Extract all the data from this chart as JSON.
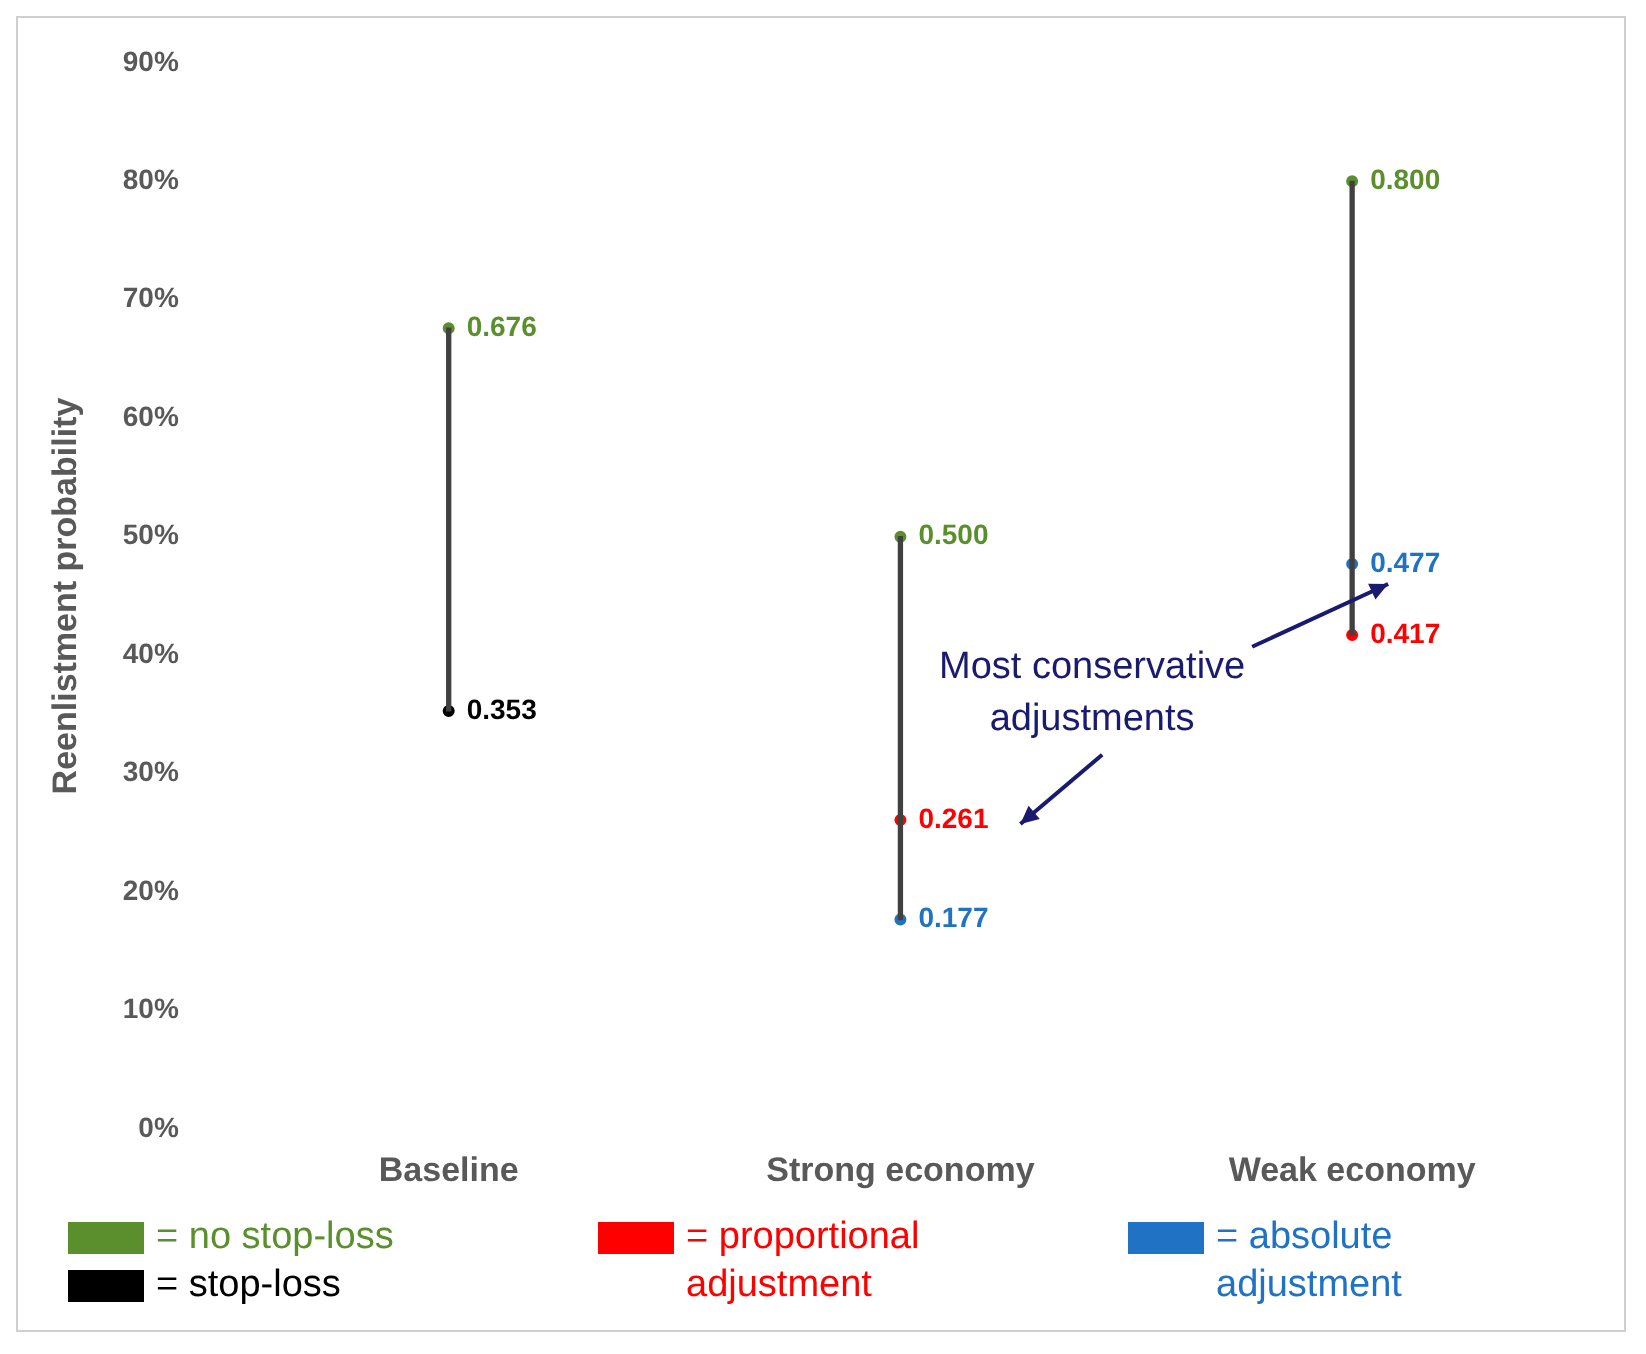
{
  "chart_data": {
    "type": "bar",
    "ylabel": "Reenlistment probability",
    "categories": [
      "Baseline",
      "Strong economy",
      "Weak economy"
    ],
    "series": [
      {
        "color": "#404040",
        "base": [
          0.353,
          0.177,
          0.417
        ],
        "values": [
          0.323,
          0.323,
          0.383
        ]
      },
      {
        "type": "scatter",
        "name": "= no stop-loss",
        "color": "#5b8f2e",
        "values": [
          0.676,
          0.5,
          0.8
        ],
        "value_labels": [
          "0.676",
          "0.500",
          "0.800"
        ]
      },
      {
        "type": "scatter",
        "name": "= stop-loss",
        "color": "#000000",
        "values": [
          0.353,
          null,
          null
        ],
        "value_labels": [
          "0.353",
          null,
          null
        ]
      },
      {
        "type": "scatter",
        "name": "= proportional adjustment",
        "color": "#ff0000",
        "values": [
          null,
          0.261,
          0.417
        ],
        "value_labels": [
          null,
          "0.261",
          "0.417"
        ]
      },
      {
        "type": "scatter",
        "name": "= absolute adjustment",
        "color": "#1f72c4",
        "values": [
          null,
          0.177,
          0.477
        ],
        "value_labels": [
          null,
          "0.177",
          "0.477"
        ]
      }
    ],
    "ylim": [
      0,
      0.9
    ],
    "yticks": [
      {
        "value": 0,
        "label": "0%"
      },
      {
        "value": 0.1,
        "label": "10%"
      },
      {
        "value": 0.2,
        "label": "20%"
      },
      {
        "value": 0.3,
        "label": "30%"
      },
      {
        "value": 0.4,
        "label": "40%"
      },
      {
        "value": 0.5,
        "label": "50%"
      },
      {
        "value": 0.6,
        "label": "60%"
      },
      {
        "value": 0.7,
        "label": "70%"
      },
      {
        "value": 0.8,
        "label": "80%"
      },
      {
        "value": 0.9,
        "label": "90%"
      }
    ],
    "grid": false,
    "marker": "circle",
    "legend": "bottom",
    "annotations": [
      {
        "text": "Most conservative adjustments",
        "x": "Strong economy",
        "y": 0.261
      }
    ]
  }
}
